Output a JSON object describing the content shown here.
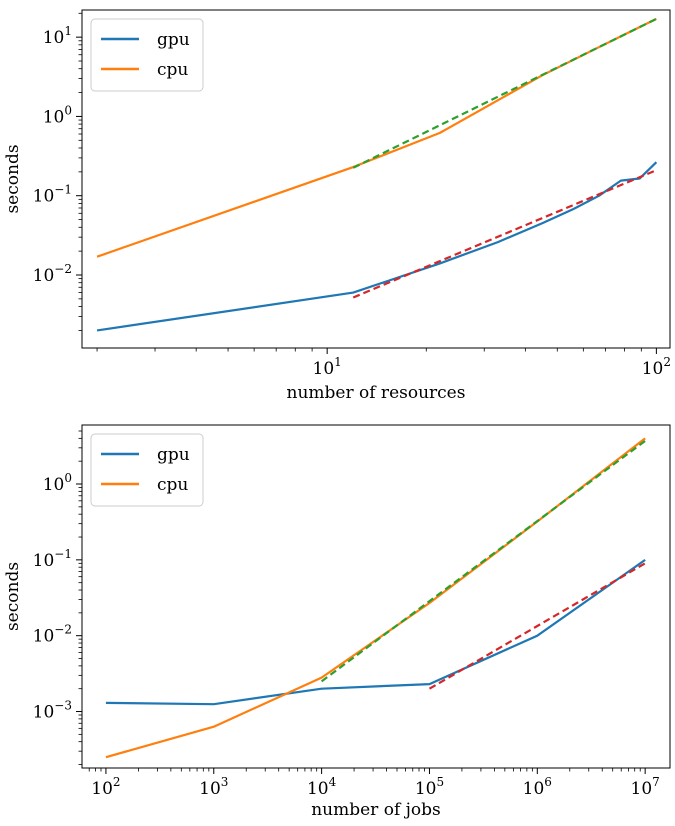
{
  "chart_data": [
    {
      "type": "line",
      "xscale": "log",
      "yscale": "log",
      "xlabel": "number of resources",
      "ylabel": "seconds",
      "xlim": [
        1.8,
        110
      ],
      "ylim": [
        0.0012,
        22
      ],
      "xticks": [
        {
          "value": 10,
          "base": "10",
          "exp": "1"
        },
        {
          "value": 100,
          "base": "10",
          "exp": "2"
        }
      ],
      "yticks": [
        {
          "value": 0.01,
          "base": "10",
          "exp": "−2"
        },
        {
          "value": 0.1,
          "base": "10",
          "exp": "−1"
        },
        {
          "value": 1,
          "base": "10",
          "exp": "0"
        },
        {
          "value": 10,
          "base": "10",
          "exp": "1"
        }
      ],
      "legend_position": "top-left",
      "series": [
        {
          "name": "gpu",
          "color": "#1f77b4",
          "style": "solid",
          "points": [
            [
              2,
              0.002
            ],
            [
              12,
              0.006
            ],
            [
              22,
              0.014
            ],
            [
              33,
              0.026
            ],
            [
              45,
              0.045
            ],
            [
              56,
              0.068
            ],
            [
              67,
              0.1
            ],
            [
              78,
              0.155
            ],
            [
              89,
              0.165
            ],
            [
              100,
              0.265
            ]
          ]
        },
        {
          "name": "cpu",
          "color": "#ff7f0e",
          "style": "solid",
          "points": [
            [
              2,
              0.017
            ],
            [
              12,
              0.23
            ],
            [
              22,
              0.62
            ],
            [
              45,
              3.3
            ],
            [
              67,
              7.5
            ],
            [
              100,
              17
            ]
          ]
        },
        {
          "name": "",
          "color": "#2ca02c",
          "style": "dashed",
          "points": [
            [
              12,
              0.225
            ],
            [
              100,
              17
            ]
          ]
        },
        {
          "name": "",
          "color": "#d62728",
          "style": "dashed",
          "points": [
            [
              12,
              0.0052
            ],
            [
              100,
              0.21
            ]
          ]
        }
      ]
    },
    {
      "type": "line",
      "xscale": "log",
      "yscale": "log",
      "xlabel": "number of jobs",
      "ylabel": "seconds",
      "xlim": [
        60,
        17000000
      ],
      "ylim": [
        0.00018,
        6
      ],
      "xticks": [
        {
          "value": 100,
          "base": "10",
          "exp": "2"
        },
        {
          "value": 1000,
          "base": "10",
          "exp": "3"
        },
        {
          "value": 10000,
          "base": "10",
          "exp": "4"
        },
        {
          "value": 100000,
          "base": "10",
          "exp": "5"
        },
        {
          "value": 1000000,
          "base": "10",
          "exp": "6"
        },
        {
          "value": 10000000,
          "base": "10",
          "exp": "7"
        }
      ],
      "yticks": [
        {
          "value": 0.001,
          "base": "10",
          "exp": "−3"
        },
        {
          "value": 0.01,
          "base": "10",
          "exp": "−2"
        },
        {
          "value": 0.1,
          "base": "10",
          "exp": "−1"
        },
        {
          "value": 1,
          "base": "10",
          "exp": "0"
        }
      ],
      "legend_position": "top-left",
      "series": [
        {
          "name": "gpu",
          "color": "#1f77b4",
          "style": "solid",
          "points": [
            [
              100,
              0.0013
            ],
            [
              1000,
              0.00125
            ],
            [
              10000,
              0.002
            ],
            [
              100000,
              0.0023
            ],
            [
              1000000,
              0.01
            ],
            [
              10000000,
              0.1
            ]
          ]
        },
        {
          "name": "cpu",
          "color": "#ff7f0e",
          "style": "solid",
          "points": [
            [
              100,
              0.00025
            ],
            [
              1000,
              0.00063
            ],
            [
              10000,
              0.0028
            ],
            [
              100000,
              0.027
            ],
            [
              1000000,
              0.32
            ],
            [
              10000000,
              4.0
            ]
          ]
        },
        {
          "name": "",
          "color": "#2ca02c",
          "style": "dashed",
          "points": [
            [
              10000,
              0.0025
            ],
            [
              10000000,
              3.7
            ]
          ]
        },
        {
          "name": "",
          "color": "#d62728",
          "style": "dashed",
          "points": [
            [
              100000,
              0.002
            ],
            [
              10000000,
              0.09
            ]
          ]
        }
      ]
    }
  ]
}
